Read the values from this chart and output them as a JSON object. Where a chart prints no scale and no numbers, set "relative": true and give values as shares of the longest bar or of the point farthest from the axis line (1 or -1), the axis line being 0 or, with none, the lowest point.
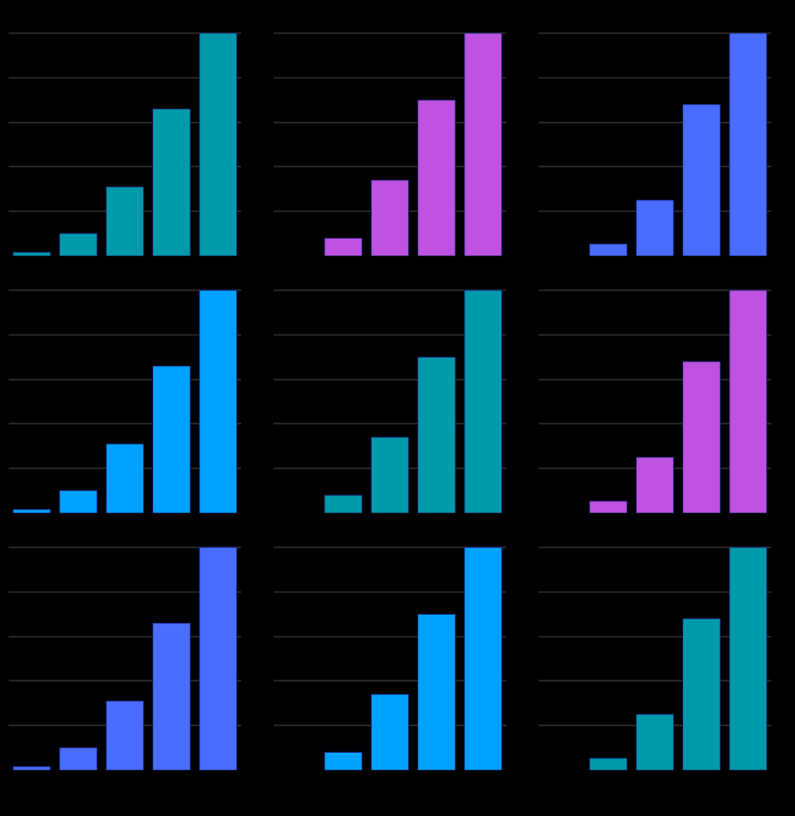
{
  "chart_data": [
    {
      "type": "bar",
      "categories": [
        null,
        null,
        null,
        null,
        null
      ],
      "values": [
        0.016,
        0.1,
        0.31,
        0.66,
        1
      ],
      "color": "#019aab",
      "relative": true,
      "grid": "y"
    },
    {
      "type": "bar",
      "categories": [
        null,
        null,
        null,
        null
      ],
      "values": [
        0.08,
        0.34,
        0.7,
        1
      ],
      "color": "#bf52e0",
      "relative": true,
      "grid": "y"
    },
    {
      "type": "bar",
      "categories": [
        null,
        null,
        null,
        null
      ],
      "values": [
        0.053,
        0.25,
        0.68,
        1
      ],
      "color": "#4a6cff",
      "relative": true,
      "grid": "y"
    },
    {
      "type": "bar",
      "categories": [
        null,
        null,
        null,
        null,
        null
      ],
      "values": [
        0.016,
        0.1,
        0.31,
        0.66,
        1
      ],
      "color": "#00a2ff",
      "relative": true,
      "grid": "y"
    },
    {
      "type": "bar",
      "categories": [
        null,
        null,
        null,
        null
      ],
      "values": [
        0.08,
        0.34,
        0.7,
        1
      ],
      "color": "#019aab",
      "relative": true,
      "grid": "y"
    },
    {
      "type": "bar",
      "categories": [
        null,
        null,
        null,
        null
      ],
      "values": [
        0.053,
        0.25,
        0.68,
        1
      ],
      "color": "#bf52e0",
      "relative": true,
      "grid": "y"
    },
    {
      "type": "bar",
      "categories": [
        null,
        null,
        null,
        null,
        null
      ],
      "values": [
        0.016,
        0.1,
        0.31,
        0.66,
        1
      ],
      "color": "#4a6cff",
      "relative": true,
      "grid": "y"
    },
    {
      "type": "bar",
      "categories": [
        null,
        null,
        null,
        null
      ],
      "values": [
        0.08,
        0.34,
        0.7,
        1
      ],
      "color": "#00a2ff",
      "relative": true,
      "grid": "y"
    },
    {
      "type": "bar",
      "categories": [
        null,
        null,
        null,
        null
      ],
      "values": [
        0.053,
        0.25,
        0.68,
        1
      ],
      "color": "#019aab",
      "relative": true,
      "grid": "y"
    }
  ]
}
